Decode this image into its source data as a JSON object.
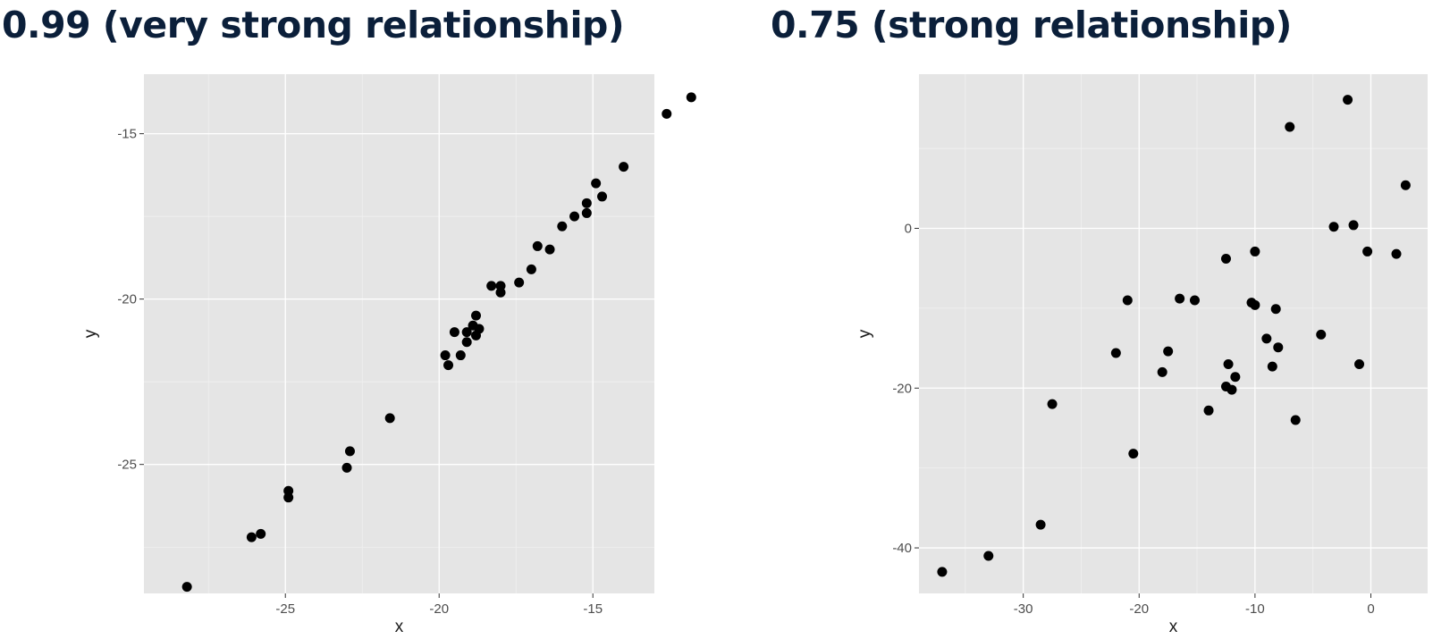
{
  "titles": {
    "left": "0.99 (very strong relationship)",
    "right": "0.75 (strong relationship)"
  },
  "chart_data": [
    {
      "type": "scatter",
      "title": "0.99 (very strong relationship)",
      "xlabel": "x",
      "ylabel": "y",
      "xlim": [
        -29.6,
        -13.0
      ],
      "ylim": [
        -28.9,
        -13.2
      ],
      "xticks": [
        -25,
        -20,
        -15
      ],
      "yticks": [
        -15,
        -20,
        -25
      ],
      "xtick_labels": [
        "-25",
        "-20",
        "-15"
      ],
      "ytick_labels": [
        "-15",
        "-20",
        "-25"
      ],
      "grid": true,
      "point_color": "#000000",
      "panel_color": "#e5e5e5",
      "points": [
        {
          "x": -28.2,
          "y": -28.7
        },
        {
          "x": -26.1,
          "y": -27.2
        },
        {
          "x": -25.8,
          "y": -27.1
        },
        {
          "x": -24.9,
          "y": -25.8
        },
        {
          "x": -24.9,
          "y": -26.0
        },
        {
          "x": -23.0,
          "y": -25.1
        },
        {
          "x": -22.9,
          "y": -24.6
        },
        {
          "x": -21.6,
          "y": -23.6
        },
        {
          "x": -19.8,
          "y": -21.7
        },
        {
          "x": -19.7,
          "y": -22.0
        },
        {
          "x": -19.5,
          "y": -21.0
        },
        {
          "x": -19.3,
          "y": -21.7
        },
        {
          "x": -19.1,
          "y": -21.3
        },
        {
          "x": -19.1,
          "y": -21.0
        },
        {
          "x": -18.9,
          "y": -20.8
        },
        {
          "x": -18.8,
          "y": -21.1
        },
        {
          "x": -18.8,
          "y": -20.5
        },
        {
          "x": -18.7,
          "y": -20.9
        },
        {
          "x": -18.3,
          "y": -19.6
        },
        {
          "x": -18.0,
          "y": -19.6
        },
        {
          "x": -18.0,
          "y": -19.8
        },
        {
          "x": -17.4,
          "y": -19.5
        },
        {
          "x": -17.0,
          "y": -19.1
        },
        {
          "x": -16.8,
          "y": -18.4
        },
        {
          "x": -16.4,
          "y": -18.5
        },
        {
          "x": -16.0,
          "y": -17.8
        },
        {
          "x": -15.6,
          "y": -17.5
        },
        {
          "x": -15.2,
          "y": -17.4
        },
        {
          "x": -15.2,
          "y": -17.1
        },
        {
          "x": -14.9,
          "y": -16.5
        },
        {
          "x": -14.7,
          "y": -16.9
        },
        {
          "x": -14.0,
          "y": -16.0
        },
        {
          "x": -12.6,
          "y": -14.4
        },
        {
          "x": -11.8,
          "y": -13.9
        }
      ]
    },
    {
      "type": "scatter",
      "title": "0.75 (strong relationship)",
      "xlabel": "x",
      "ylabel": "y",
      "xlim": [
        -39.0,
        4.9
      ],
      "ylim": [
        -45.7,
        19.3
      ],
      "xticks": [
        -30,
        -20,
        -10,
        0
      ],
      "yticks": [
        0,
        -20,
        -40
      ],
      "xtick_labels": [
        "-30",
        "-20",
        "-10",
        "0"
      ],
      "ytick_labels": [
        "0",
        "-20",
        "-40"
      ],
      "grid": true,
      "point_color": "#000000",
      "panel_color": "#e5e5e5",
      "points": [
        {
          "x": -37.0,
          "y": -43.0
        },
        {
          "x": -33.0,
          "y": -41.0
        },
        {
          "x": -28.5,
          "y": -37.1
        },
        {
          "x": -27.5,
          "y": -22.0
        },
        {
          "x": -22.0,
          "y": -15.6
        },
        {
          "x": -21.0,
          "y": -9.0
        },
        {
          "x": -20.5,
          "y": -28.2
        },
        {
          "x": -18.0,
          "y": -18.0
        },
        {
          "x": -17.5,
          "y": -15.4
        },
        {
          "x": -16.5,
          "y": -8.8
        },
        {
          "x": -15.2,
          "y": -9.0
        },
        {
          "x": -14.0,
          "y": -22.8
        },
        {
          "x": -12.5,
          "y": -3.8
        },
        {
          "x": -12.3,
          "y": -17.0
        },
        {
          "x": -12.5,
          "y": -19.8
        },
        {
          "x": -12.0,
          "y": -20.2
        },
        {
          "x": -11.7,
          "y": -18.6
        },
        {
          "x": -10.3,
          "y": -9.3
        },
        {
          "x": -10.0,
          "y": -9.6
        },
        {
          "x": -10.0,
          "y": -2.9
        },
        {
          "x": -9.0,
          "y": -13.8
        },
        {
          "x": -8.5,
          "y": -17.3
        },
        {
          "x": -8.2,
          "y": -10.1
        },
        {
          "x": -8.0,
          "y": -14.9
        },
        {
          "x": -7.0,
          "y": 12.7
        },
        {
          "x": -6.5,
          "y": -24.0
        },
        {
          "x": -4.3,
          "y": -13.3
        },
        {
          "x": -3.2,
          "y": 0.2
        },
        {
          "x": -2.0,
          "y": 16.1
        },
        {
          "x": -1.5,
          "y": 0.4
        },
        {
          "x": -1.0,
          "y": -17.0
        },
        {
          "x": -0.3,
          "y": -2.9
        },
        {
          "x": 2.2,
          "y": -3.2
        },
        {
          "x": 3.0,
          "y": 5.4
        }
      ]
    }
  ]
}
